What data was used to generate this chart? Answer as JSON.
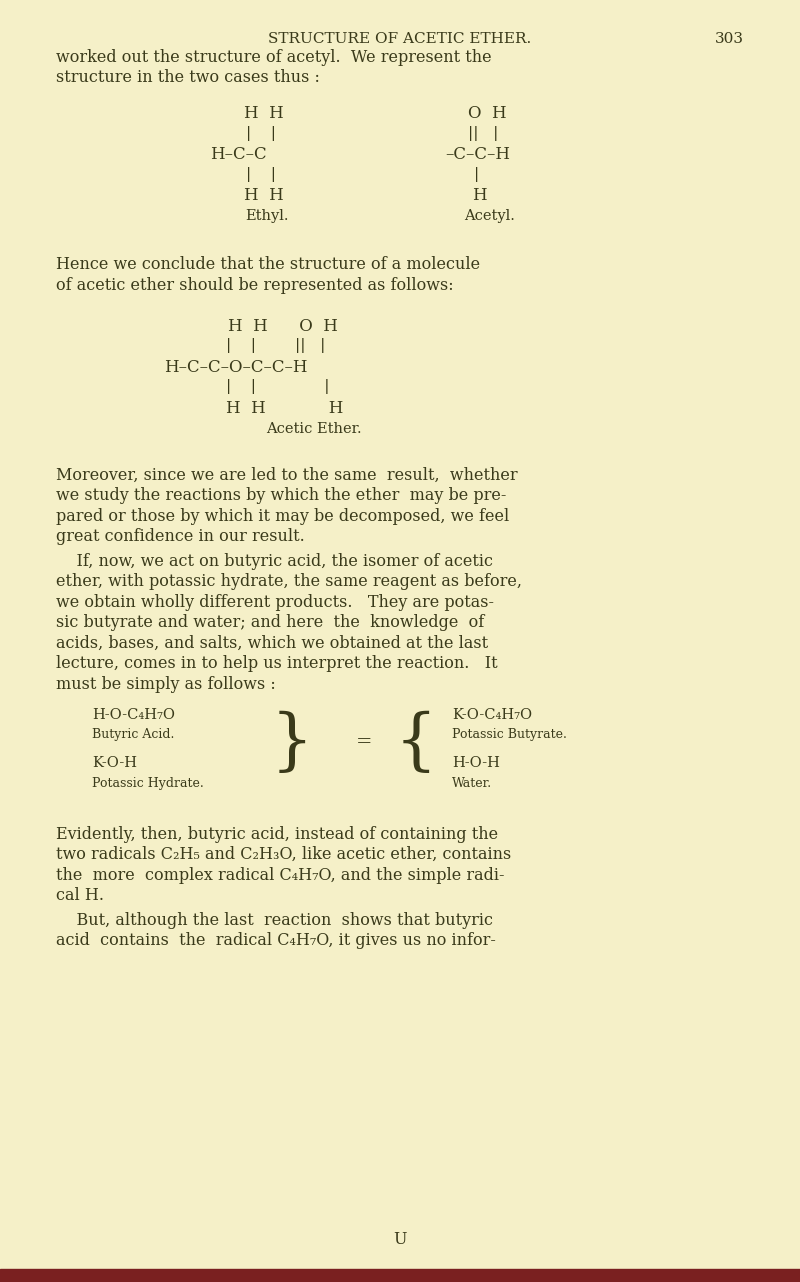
{
  "bg_color": "#f5f0c8",
  "text_color": "#3a3a1a",
  "page_width": 8.0,
  "page_height": 12.82,
  "header_title": "STRUCTURE OF ACETIC ETHER.",
  "header_page": "303",
  "footer_char": "U",
  "bottom_bar_color": "#7a2020"
}
